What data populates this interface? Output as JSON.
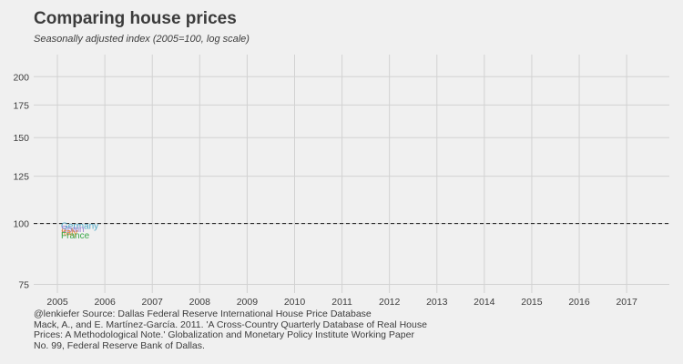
{
  "title": "Comparing house prices",
  "subtitle": "Seasonally adjusted index (2005=100, log scale)",
  "caption_lines": [
    "@lenkiefer Source: Dallas Federal Reserve International House Price Database",
    "Mack, A., and E. Martínez-García. 2011. 'A Cross-Country Quarterly Database of Real House",
    "Prices: A Methodological Note.' Globalization and Monetary Policy Institute Working Paper",
    "No. 99, Federal Reserve Bank of Dallas."
  ],
  "chart_data": {
    "type": "line",
    "x_ticks": [
      "2005",
      "2006",
      "2007",
      "2008",
      "2009",
      "2010",
      "2011",
      "2012",
      "2013",
      "2014",
      "2015",
      "2016",
      "2017"
    ],
    "y_ticks": [
      "75",
      "100",
      "125",
      "150",
      "175",
      "200"
    ],
    "y_scale": "log",
    "xlim": [
      2004.5,
      2017.9
    ],
    "ylim": [
      72,
      222
    ],
    "reference_line": {
      "y": 100,
      "style": "dashed"
    },
    "series": [
      {
        "name": "Germany",
        "x": [
          2005.0
        ],
        "y": [
          100
        ],
        "color": "#4aa8c8"
      },
      {
        "name": "Spain",
        "x": [
          2005.0
        ],
        "y": [
          100
        ],
        "color": "#9f7fd6"
      },
      {
        "name": "Italy",
        "x": [
          2005.0
        ],
        "y": [
          100
        ],
        "color": "#e4862a"
      },
      {
        "name": "France",
        "x": [
          2005.0
        ],
        "y": [
          100
        ],
        "color": "#3aa64a"
      }
    ],
    "grid": true
  }
}
